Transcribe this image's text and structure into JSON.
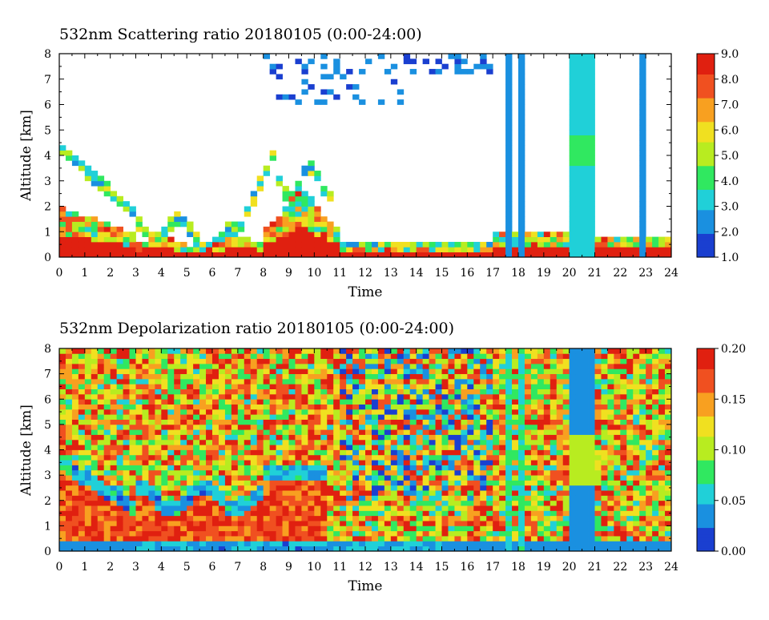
{
  "charts": [
    {
      "title": "532nm Scattering ratio  20180105 (0:00-24:00)",
      "xlabel": "Time",
      "ylabel": "Altitude [km]",
      "colorbar_ticks": [
        "1.0",
        "2.0",
        "3.0",
        "4.0",
        "5.0",
        "6.0",
        "7.0",
        "8.0",
        "9.0"
      ]
    },
    {
      "title": "532nm Depolarization ratio  20180105 (0:00-24:00)",
      "xlabel": "Time",
      "ylabel": "Altitude [km]",
      "colorbar_ticks": [
        "0.00",
        "0.05",
        "0.10",
        "0.15",
        "0.20"
      ]
    }
  ],
  "chart_data": [
    {
      "type": "heatmap",
      "title": "532nm Scattering ratio  20180105 (0:00-24:00)",
      "xlabel": "Time",
      "ylabel": "Altitude [km]",
      "x_ticks": [
        "0",
        "1",
        "2",
        "3",
        "4",
        "5",
        "6",
        "7",
        "8",
        "9",
        "10",
        "11",
        "12",
        "13",
        "14",
        "15",
        "16",
        "17",
        "18",
        "19",
        "20",
        "21",
        "22",
        "23",
        "24"
      ],
      "y_ticks": [
        "0",
        "1",
        "2",
        "3",
        "4",
        "5",
        "6",
        "7",
        "8"
      ],
      "xlim": [
        0,
        24
      ],
      "ylim": [
        0,
        8
      ],
      "colorbar": {
        "min": 1.0,
        "max": 9.0,
        "ticks": [
          1.0,
          2.0,
          3.0,
          4.0,
          5.0,
          6.0,
          7.0,
          8.0,
          9.0
        ]
      },
      "colormap": [
        "#1a3fd0",
        "#1a90e0",
        "#20d0d8",
        "#30e860",
        "#b8ec20",
        "#f0e020",
        "#f8a020",
        "#f05020",
        "#e02010"
      ]
    },
    {
      "type": "heatmap",
      "title": "532nm Depolarization ratio  20180105 (0:00-24:00)",
      "xlabel": "Time",
      "ylabel": "Altitude [km]",
      "x_ticks": [
        "0",
        "1",
        "2",
        "3",
        "4",
        "5",
        "6",
        "7",
        "8",
        "9",
        "10",
        "11",
        "12",
        "13",
        "14",
        "15",
        "16",
        "17",
        "18",
        "19",
        "20",
        "21",
        "22",
        "23",
        "24"
      ],
      "y_ticks": [
        "0",
        "1",
        "2",
        "3",
        "4",
        "5",
        "6",
        "7",
        "8"
      ],
      "xlim": [
        0,
        24
      ],
      "ylim": [
        0,
        8
      ],
      "colorbar": {
        "min": 0.0,
        "max": 0.2,
        "ticks": [
          0.0,
          0.05,
          0.1,
          0.15,
          0.2
        ]
      },
      "colormap": [
        "#1a3fd0",
        "#1a90e0",
        "#20d0d8",
        "#30e860",
        "#b8ec20",
        "#f0e020",
        "#f8a020",
        "#f05020",
        "#e02010"
      ]
    }
  ]
}
